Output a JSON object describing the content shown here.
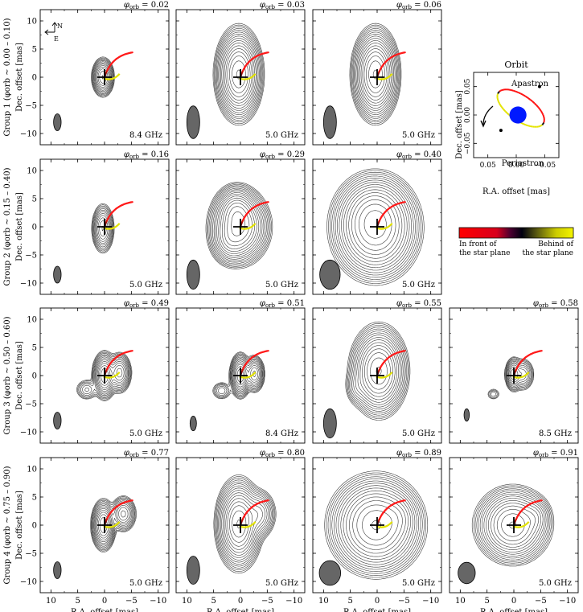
{
  "chart_data": {
    "type": "contour",
    "title": "",
    "xlabel": "R.A. offset [mas]",
    "ylabel": "Dec. offset [mas]",
    "xlim": [
      12,
      -12
    ],
    "ylim": [
      -12,
      12
    ],
    "xticks": [
      10,
      5,
      0,
      -5,
      -10
    ],
    "yticks": [
      10,
      5,
      0,
      -5,
      -10
    ],
    "phase_symbol": "φ",
    "phase_sub": "orb",
    "groups": [
      {
        "label": "Group 1 (φorb ~ 0.00 – 0.10)",
        "panels": [
          {
            "phase": "0.02",
            "freq": "8.4 GHz",
            "beam": {
              "ra": 8.8,
              "dec": -8.0,
              "ra_radius": 0.7,
              "dec_radius": 1.5
            },
            "source": [
              {
                "ra": 0.3,
                "dec": 0.0,
                "ra_sigma": 0.9,
                "dec_sigma": 1.5,
                "peak": 1.0
              }
            ],
            "levels": 13,
            "base": 0.06
          },
          {
            "phase": "0.03",
            "freq": "5.0 GHz",
            "beam": {
              "ra": 8.8,
              "dec": -8.0,
              "ra_radius": 1.2,
              "dec_radius": 2.9
            },
            "source": [
              {
                "ra": 0.3,
                "dec": 0.5,
                "ra_sigma": 1.8,
                "dec_sigma": 3.4,
                "peak": 1.0
              }
            ],
            "levels": 17,
            "base": 0.03
          },
          {
            "phase": "0.06",
            "freq": "5.0 GHz",
            "beam": {
              "ra": 8.8,
              "dec": -8.0,
              "ra_radius": 1.2,
              "dec_radius": 2.9
            },
            "source": [
              {
                "ra": 0.3,
                "dec": 0.5,
                "ra_sigma": 1.8,
                "dec_sigma": 3.4,
                "peak": 1.0
              }
            ],
            "levels": 17,
            "base": 0.03
          }
        ]
      },
      {
        "label": "Group 2 (φorb ~ 0.15 – 0.40)",
        "panels": [
          {
            "phase": "0.16",
            "freq": "5.0 GHz",
            "beam": {
              "ra": 8.8,
              "dec": -8.5,
              "ra_radius": 0.7,
              "dec_radius": 1.5
            },
            "source": [
              {
                "ra": 0.3,
                "dec": -0.3,
                "ra_sigma": 0.9,
                "dec_sigma": 1.9,
                "peak": 1.0
              }
            ],
            "levels": 12,
            "base": 0.07
          },
          {
            "phase": "0.29",
            "freq": "5.0 GHz",
            "beam": {
              "ra": 8.8,
              "dec": -8.5,
              "ra_radius": 1.2,
              "dec_radius": 2.6
            },
            "source": [
              {
                "ra": 0.2,
                "dec": 0.0,
                "ra_sigma": 2.2,
                "dec_sigma": 2.6,
                "peak": 1.0
              },
              {
                "ra": 0.8,
                "dec": 3.0,
                "ra_sigma": 1.6,
                "dec_sigma": 1.8,
                "peak": 0.4
              },
              {
                "ra": 2.0,
                "dec": -2.5,
                "ra_sigma": 1.5,
                "dec_sigma": 1.8,
                "peak": 0.25
              }
            ],
            "levels": 16,
            "base": 0.02
          },
          {
            "phase": "0.40",
            "freq": "5.0 GHz",
            "beam": {
              "ra": 8.8,
              "dec": -8.5,
              "ra_radius": 1.9,
              "dec_radius": 2.6
            },
            "source": [
              {
                "ra": 0.3,
                "dec": -0.3,
                "ra_sigma": 3.2,
                "dec_sigma": 3.6,
                "peak": 1.0
              },
              {
                "ra": 0.5,
                "dec": 2.5,
                "ra_sigma": 2.8,
                "dec_sigma": 2.8,
                "peak": 0.3
              }
            ],
            "levels": 16,
            "base": 0.02
          }
        ]
      },
      {
        "label": "Group 3 (φorb ~ 0.50 – 0.60)",
        "panels": [
          {
            "phase": "0.49",
            "freq": "5.0 GHz",
            "beam": {
              "ra": 8.8,
              "dec": -8.0,
              "ra_radius": 0.7,
              "dec_radius": 1.5
            },
            "source": [
              {
                "ra": 0.0,
                "dec": 0.0,
                "ra_sigma": 0.8,
                "dec_sigma": 1.5,
                "peak": 1.0
              },
              {
                "ra": -2.8,
                "dec": 0.5,
                "ra_sigma": 0.8,
                "dec_sigma": 1.3,
                "peak": 0.6
              },
              {
                "ra": 3.3,
                "dec": -2.5,
                "ra_sigma": 0.9,
                "dec_sigma": 0.8,
                "peak": 0.1
              }
            ],
            "levels": 14,
            "base": 0.012
          },
          {
            "phase": "0.51",
            "freq": "8.4 GHz",
            "beam": {
              "ra": 8.8,
              "dec": -8.5,
              "ra_radius": 0.6,
              "dec_radius": 1.3
            },
            "source": [
              {
                "ra": 0.0,
                "dec": 0.0,
                "ra_sigma": 0.7,
                "dec_sigma": 1.4,
                "peak": 1.0
              },
              {
                "ra": -2.6,
                "dec": 0.3,
                "ra_sigma": 0.7,
                "dec_sigma": 1.2,
                "peak": 0.55
              },
              {
                "ra": 3.5,
                "dec": -2.7,
                "ra_sigma": 0.8,
                "dec_sigma": 0.7,
                "peak": 0.09
              }
            ],
            "levels": 14,
            "base": 0.012
          },
          {
            "phase": "0.55",
            "freq": "5.0 GHz",
            "beam": {
              "ra": 8.8,
              "dec": -8.5,
              "ra_radius": 1.2,
              "dec_radius": 2.6
            },
            "source": [
              {
                "ra": -0.3,
                "dec": 0.8,
                "ra_sigma": 2.0,
                "dec_sigma": 3.0,
                "peak": 1.0
              },
              {
                "ra": 3.8,
                "dec": -2.0,
                "ra_sigma": 1.0,
                "dec_sigma": 1.5,
                "peak": 0.07
              }
            ],
            "levels": 16,
            "base": 0.015
          },
          {
            "phase": "0.58",
            "freq": "8.5 GHz",
            "beam": {
              "ra": 8.8,
              "dec": -7.0,
              "ra_radius": 0.5,
              "dec_radius": 1.1
            },
            "source": [
              {
                "ra": 0.0,
                "dec": 0.2,
                "ra_sigma": 0.6,
                "dec_sigma": 1.1,
                "peak": 1.0
              },
              {
                "ra": -1.7,
                "dec": 0.2,
                "ra_sigma": 0.8,
                "dec_sigma": 1.1,
                "peak": 0.45
              },
              {
                "ra": 3.8,
                "dec": -3.3,
                "ra_sigma": 0.6,
                "dec_sigma": 0.5,
                "peak": 0.08
              }
            ],
            "levels": 12,
            "base": 0.02
          }
        ]
      },
      {
        "label": "Group 4 (φorb ~ 0.75 – 0.90)",
        "panels": [
          {
            "phase": "0.77",
            "freq": "5.0 GHz",
            "beam": {
              "ra": 8.8,
              "dec": -8.0,
              "ra_radius": 0.7,
              "dec_radius": 1.5
            },
            "source": [
              {
                "ra": 0.2,
                "dec": 0.0,
                "ra_sigma": 0.8,
                "dec_sigma": 1.6,
                "peak": 1.0
              },
              {
                "ra": -3.5,
                "dec": 2.0,
                "ra_sigma": 0.9,
                "dec_sigma": 1.2,
                "peak": 0.4
              }
            ],
            "levels": 14,
            "base": 0.012
          },
          {
            "phase": "0.80",
            "freq": "5.0 GHz",
            "beam": {
              "ra": 8.8,
              "dec": -8.0,
              "ra_radius": 1.2,
              "dec_radius": 2.5
            },
            "source": [
              {
                "ra": 0.3,
                "dec": 0.2,
                "ra_sigma": 1.6,
                "dec_sigma": 3.0,
                "peak": 1.0
              },
              {
                "ra": -3.5,
                "dec": 2.0,
                "ra_sigma": 1.3,
                "dec_sigma": 1.8,
                "peak": 0.25
              }
            ],
            "levels": 16,
            "base": 0.015
          },
          {
            "phase": "0.89",
            "freq": "5.0 GHz",
            "beam": {
              "ra": 8.8,
              "dec": -8.5,
              "ra_radius": 2.0,
              "dec_radius": 2.2
            },
            "source": [
              {
                "ra": 0.2,
                "dec": 0.0,
                "ra_sigma": 3.3,
                "dec_sigma": 3.3,
                "peak": 1.0
              },
              {
                "ra": -4.0,
                "dec": 1.5,
                "ra_sigma": 1.5,
                "dec_sigma": 1.8,
                "peak": 0.12
              }
            ],
            "levels": 16,
            "base": 0.015
          },
          {
            "phase": "0.91",
            "freq": "5.0 GHz",
            "beam": {
              "ra": 8.8,
              "dec": -8.5,
              "ra_radius": 1.6,
              "dec_radius": 1.9
            },
            "source": [
              {
                "ra": 0.2,
                "dec": 0.0,
                "ra_sigma": 2.6,
                "dec_sigma": 2.5,
                "peak": 1.0
              },
              {
                "ra": -4.0,
                "dec": 1.5,
                "ra_sigma": 1.2,
                "dec_sigma": 1.5,
                "peak": 0.15
              }
            ],
            "levels": 15,
            "base": 0.015
          }
        ]
      }
    ],
    "compass": {
      "north": "N",
      "east": "E"
    },
    "orbit_panel": {
      "title": "Orbit",
      "xlabel": "R.A. offset [mas]",
      "ylabel": "Dec. offset [mas]",
      "xlim": [
        0.075,
        -0.075
      ],
      "ylim": [
        -0.075,
        0.075
      ],
      "xticks": [
        0.05,
        0.0,
        -0.05
      ],
      "yticks": [
        0.05,
        0.0,
        -0.05
      ],
      "xtick_labels": [
        "0.05",
        "0.00",
        "−0.05"
      ],
      "ytick_labels": [
        "0.05",
        "0.00",
        "−0.05"
      ],
      "apastron_label": "Apastron",
      "periastron_label": "Periastron",
      "apastron_point": {
        "ra": -0.041,
        "dec": 0.05
      },
      "periastron_point": {
        "ra": 0.027,
        "dec": -0.027
      },
      "star": {
        "ra": -0.003,
        "dec": 0.0,
        "radius": 0.015,
        "color": "#0019ff"
      }
    },
    "colorbar": {
      "left_label_1": "In front of",
      "left_label_2": "the star plane",
      "right_label_1": "Behind of",
      "right_label_2": "the star plane",
      "colors": [
        "#ff0000",
        "#d8001c",
        "#4a0030",
        "#000010",
        "#595910",
        "#cccc00",
        "#f4f400"
      ]
    },
    "projected_orbit": {
      "start": {
        "ra": -5.2,
        "dec": 4.4
      },
      "end": {
        "ra": 0.0,
        "dec": 0.0
      },
      "near_color": "#ff1a1a",
      "far_color": "#e6e600"
    },
    "colors": {
      "contour": "#3c3c3c",
      "beam_fill": "#666666",
      "frame": "#000000"
    }
  }
}
